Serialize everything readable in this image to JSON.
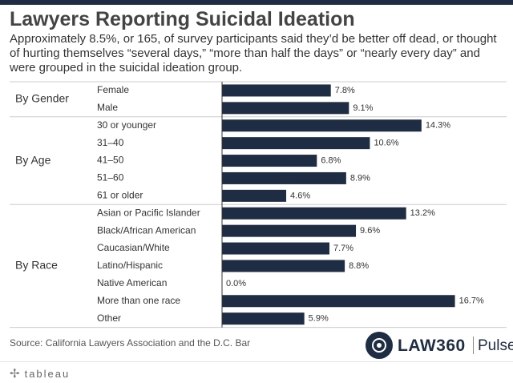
{
  "title": "Lawyers Reporting Suicidal Ideation",
  "subtitle": "Approximately 8.5%, or 165, of survey participants said they’d be better off dead, or thought of hurting themselves “several days,” “more than half the days” or “nearly every day” and were grouped in the suicidal ideation group.",
  "source": "Source: California Lawyers Association and the D.C. Bar",
  "brand": {
    "name": "LAW360",
    "sub": "Pulse",
    "logo_icon": "law360-globe-icon"
  },
  "footer": {
    "logo": "tableau",
    "logo_icon": "tableau-plus-icon"
  },
  "colors": {
    "bar": "#1f2d44",
    "text": "#333333",
    "grid": "#cccccc"
  },
  "chart_data": {
    "type": "bar",
    "orientation": "horizontal",
    "xlim": [
      0,
      20
    ],
    "groups": [
      {
        "name": "By Gender",
        "categories": [
          "Female",
          "Male"
        ],
        "values": [
          7.8,
          9.1
        ],
        "labels": [
          "7.8%",
          "9.1%"
        ]
      },
      {
        "name": "By Age",
        "categories": [
          "30 or younger",
          "31–40",
          "41–50",
          "51–60",
          "61 or older"
        ],
        "values": [
          14.3,
          10.6,
          6.8,
          8.9,
          4.6
        ],
        "labels": [
          "14.3%",
          "10.6%",
          "6.8%",
          "8.9%",
          "4.6%"
        ]
      },
      {
        "name": "By Race",
        "categories": [
          "Asian or Pacific Islander",
          "Black/African American",
          "Caucasian/White",
          "Latino/Hispanic",
          "Native American",
          "More than one race",
          "Other"
        ],
        "values": [
          13.2,
          9.6,
          7.7,
          8.8,
          0.0,
          16.7,
          5.9
        ],
        "labels": [
          "13.2%",
          "9.6%",
          "7.7%",
          "8.8%",
          "0.0%",
          "16.7%",
          "5.9%"
        ]
      }
    ]
  }
}
